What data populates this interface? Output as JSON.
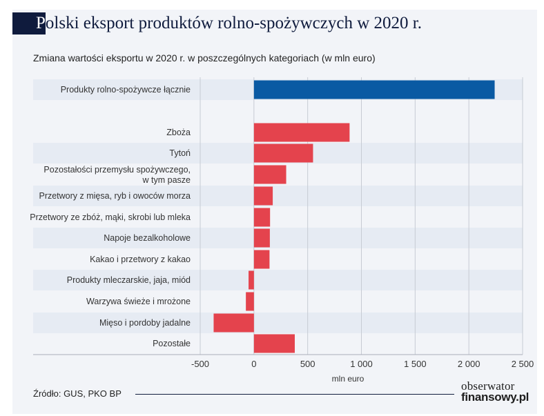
{
  "header": {
    "title_first": "P",
    "title_rest": "olski eksport produktów rolno-spożywczych w 2020 r.",
    "subtitle": "Zmiana wartości eksportu w 2020 r. w poszczególnych kategoriach (w mln euro)"
  },
  "colors": {
    "total": "#0a5aa3",
    "positive": "#e4434d",
    "negative": "#e4434d",
    "band": "#e6ebf3",
    "grid": "#c7cbd3"
  },
  "chart_data": {
    "type": "bar",
    "orientation": "horizontal",
    "title": "Polski eksport produktów rolno-spożywczych w 2020 r.",
    "subtitle": "Zmiana wartości eksportu w 2020 r. w poszczególnych kategoriach (w mln euro)",
    "xlabel": "mln euro",
    "xlim": [
      -500,
      2500
    ],
    "ticks": [
      -500,
      0,
      500,
      1000,
      1500,
      2000,
      2500
    ],
    "tick_labels": [
      "-500",
      "0",
      "500",
      "1 000",
      "1 500",
      "2 000",
      "2 500"
    ],
    "grid": true,
    "categories": [
      "Produkty rolno-spożywcze łącznie",
      "Zboża",
      "Tytoń",
      "Pozostałości  przemysłu spożywczego,\nw tym pasze",
      "Przetwory z mięsa, ryb i owoców morza",
      "Przetwory ze zbóż, mąki, skrobi lub mleka",
      "Napoje bezalkoholowe",
      "Kakao i przetwory z kakao",
      "Produkty mleczarskie, jaja, miód",
      "Warzywa świeże i mrożone",
      "Mięso i pordoby jadalne",
      "Pozostałe"
    ],
    "values": [
      2240,
      890,
      550,
      300,
      175,
      150,
      148,
      145,
      -50,
      -75,
      -375,
      380
    ]
  },
  "footer": {
    "source": "Źródło: GUS, PKO BP",
    "brand_line1": "obserwator",
    "brand_line2": "finansowy.pl"
  }
}
